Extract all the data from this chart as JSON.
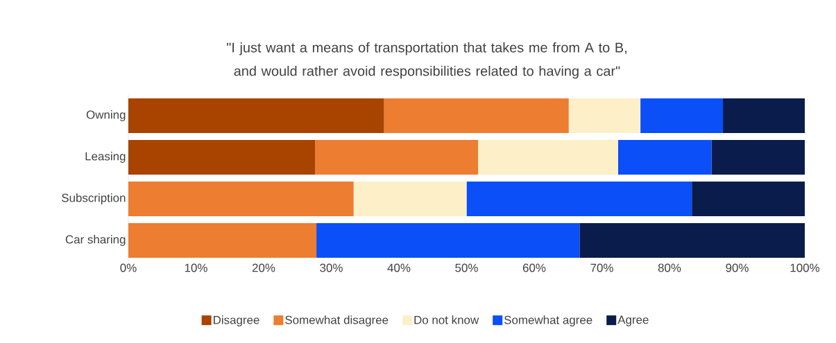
{
  "chart_data": {
    "type": "bar",
    "orientation": "horizontal",
    "stacked": true,
    "title": "\"I just want a means of transportation that takes me from A to B, and would rather avoid responsibilities related to having a car\"",
    "categories": [
      "Owning",
      "Leasing",
      "Subscription",
      "Car sharing"
    ],
    "series": [
      {
        "name": "Disagree",
        "color": "#a84300",
        "values": [
          37.8,
          27.6,
          0,
          0
        ]
      },
      {
        "name": "Somewhat disagree",
        "color": "#ed7d31",
        "values": [
          27.3,
          24.1,
          33.3,
          27.8
        ]
      },
      {
        "name": "Do not know",
        "color": "#fdefc8",
        "values": [
          10.6,
          20.7,
          16.7,
          0
        ]
      },
      {
        "name": "Somewhat agree",
        "color": "#0a4ff7",
        "values": [
          12.2,
          13.8,
          33.3,
          38.9
        ]
      },
      {
        "name": "Agree",
        "color": "#0a1c4c",
        "values": [
          12.1,
          13.8,
          16.7,
          33.3
        ]
      }
    ],
    "xlim": [
      0,
      100
    ],
    "xticks": [
      {
        "value": 0,
        "label": "0%"
      },
      {
        "value": 10,
        "label": "10%"
      },
      {
        "value": 20,
        "label": "20%"
      },
      {
        "value": 30,
        "label": "30%"
      },
      {
        "value": 40,
        "label": "40%"
      },
      {
        "value": 50,
        "label": "50%"
      },
      {
        "value": 60,
        "label": "60%"
      },
      {
        "value": 70,
        "label": "70%"
      },
      {
        "value": 80,
        "label": "80%"
      },
      {
        "value": 90,
        "label": "90%"
      },
      {
        "value": 100,
        "label": "100%"
      }
    ],
    "grid": false,
    "legend": "bottom"
  }
}
